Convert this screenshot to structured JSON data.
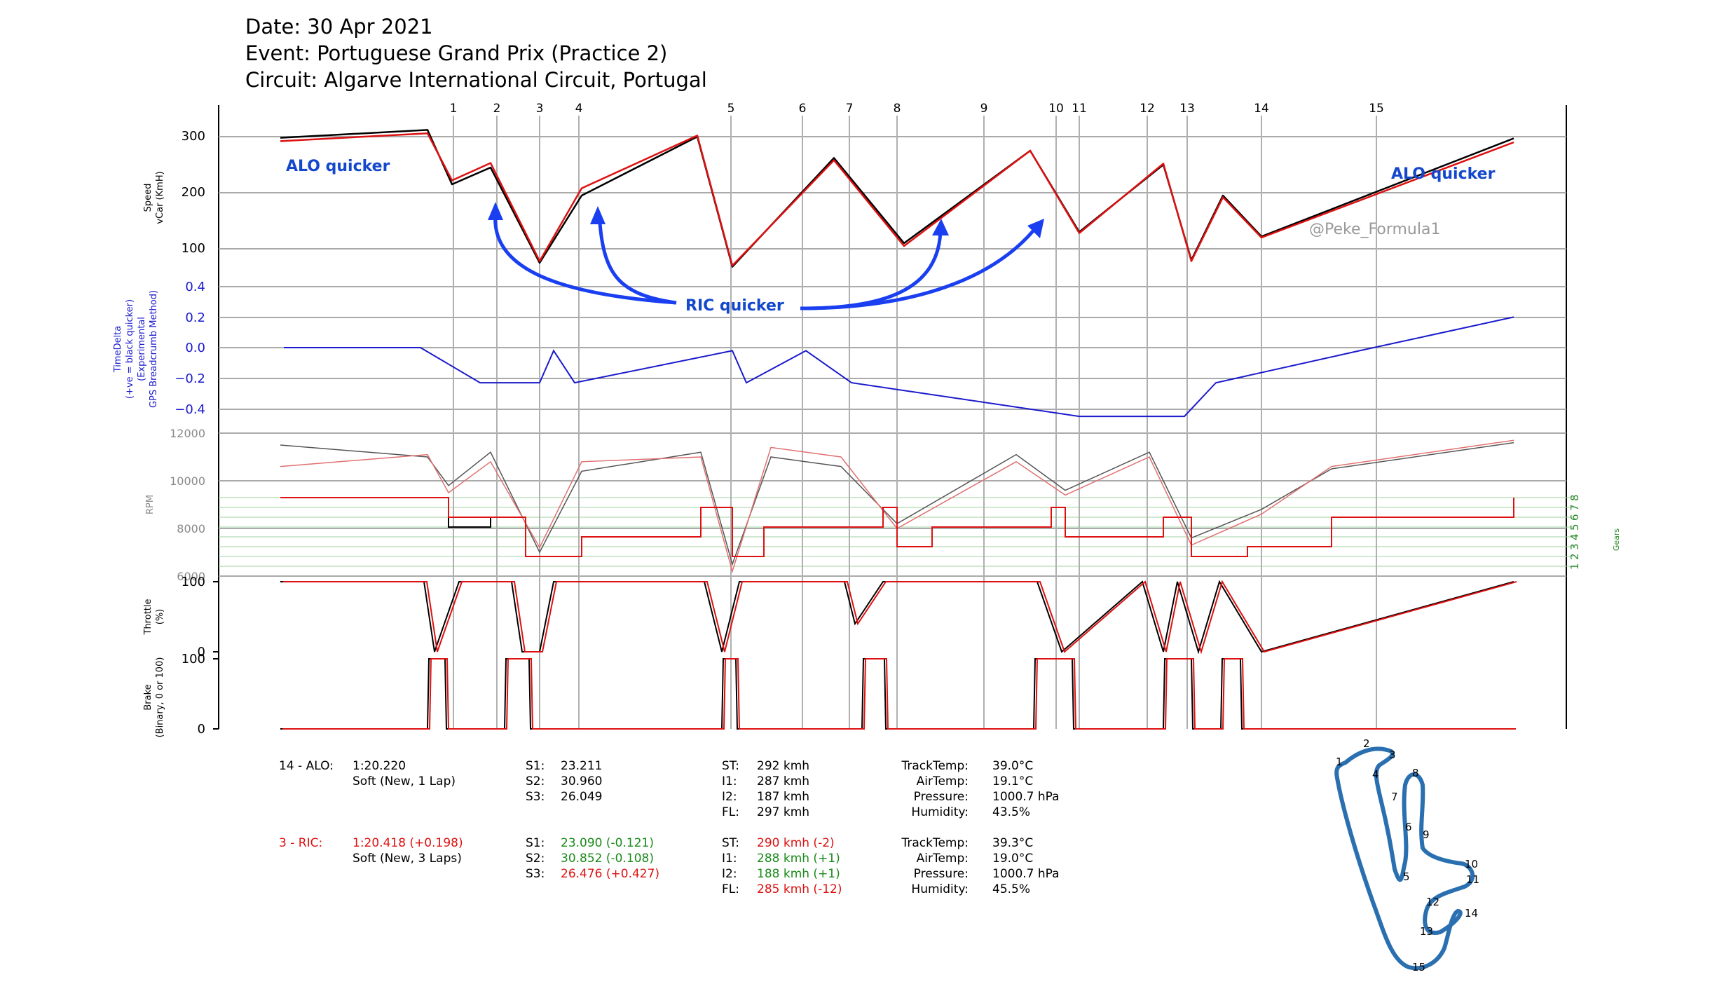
{
  "header": {
    "date": "Date: 30 Apr 2021",
    "event": "Event: Portuguese Grand Prix (Practice 2)",
    "circuit": "Circuit: Algarve International Circuit, Portugal"
  },
  "colors": {
    "driver1": "#000000",
    "driver2": "#dd1111",
    "delta": "#1a1acc",
    "annotation": "#1448cc",
    "gears": "#2a8a2a",
    "rpm_axis": "#888888",
    "track": "#2a6fb0"
  },
  "watermark": "@Peke_Formula1",
  "corners": [
    "1",
    "2",
    "3",
    "4",
    "5",
    "6",
    "7",
    "8",
    "9",
    "10",
    "11",
    "12",
    "13",
    "14",
    "15"
  ],
  "annotations": {
    "alo_left": "ALO quicker",
    "alo_right": "ALO quicker",
    "ric": "RIC quicker"
  },
  "axes": {
    "speed": {
      "label1": "Speed",
      "label2": "vCar (KmH)",
      "ticks": [
        "300",
        "200",
        "100"
      ]
    },
    "delta": {
      "label1": "TimeDelta",
      "label2": "(+ve = black quicker)",
      "label3": "(Experimental",
      "label4": "GPS Breadcrumb Method)",
      "ticks": [
        "0.4",
        "0.2",
        "0.0",
        "−0.2",
        "−0.4"
      ]
    },
    "rpm": {
      "label": "RPM",
      "ticks": [
        "12000",
        "10000",
        "8000",
        "6000"
      ]
    },
    "gears": {
      "label": "Gears",
      "ticks": [
        "1",
        "2",
        "3",
        "4",
        "5",
        "6",
        "7",
        "8"
      ]
    },
    "throttle": {
      "label1": "Throttle",
      "label2": "(%)",
      "ticks": [
        "100",
        "0"
      ]
    },
    "brake": {
      "label1": "Brake",
      "label2": "(Binary, 0 or 100)",
      "ticks": [
        "100",
        "0"
      ]
    }
  },
  "chart_data": {
    "type": "line",
    "x_corner_distance_index": [
      1,
      2,
      3,
      4,
      5,
      6,
      7,
      8,
      9,
      10,
      11,
      12,
      13,
      14,
      15
    ],
    "series": [
      {
        "name": "14 - ALO",
        "speed_kmh_key_points": [
          298,
          312,
          215,
          245,
          75,
          195,
          300,
          68,
          262,
          110,
          275,
          130,
          250,
          80,
          195,
          122,
          297
        ]
      },
      {
        "name": "3 - RIC",
        "speed_kmh_key_points": [
          292,
          306,
          222,
          253,
          78,
          208,
          302,
          70,
          258,
          105,
          275,
          128,
          252,
          78,
          192,
          120,
          290
        ]
      }
    ],
    "time_delta_s": [
      0.0,
      0.0,
      -0.23,
      -0.23,
      -0.02,
      -0.23,
      -0.02,
      -0.23,
      -0.02,
      -0.23,
      -0.45,
      -0.45,
      -0.23,
      -0.02,
      0.2
    ],
    "ylim_speed": [
      60,
      330
    ],
    "ylim_delta": [
      -0.5,
      0.5
    ],
    "ylim_rpm": [
      6000,
      12500
    ],
    "ylim_throttle": [
      0,
      100
    ],
    "ylim_brake": [
      0,
      100
    ]
  },
  "info": {
    "d1": {
      "name": "14 - ALO:",
      "lap": "1:20.220",
      "tyre": "Soft (New, 1 Lap)",
      "sectors": [
        [
          "S1:",
          "23.211"
        ],
        [
          "S2:",
          "30.960"
        ],
        [
          "S3:",
          "26.049"
        ]
      ],
      "speeds": [
        [
          "ST:",
          "292 kmh"
        ],
        [
          "I1:",
          "287 kmh"
        ],
        [
          "I2:",
          "187 kmh"
        ],
        [
          "FL:",
          "297 kmh"
        ]
      ],
      "weather": [
        [
          "TrackTemp:",
          "39.0°C"
        ],
        [
          "AirTemp:",
          "19.1°C"
        ],
        [
          "Pressure:",
          "1000.7 hPa"
        ],
        [
          "Humidity:",
          "43.5%"
        ]
      ]
    },
    "d2": {
      "name": "3 - RIC:",
      "lap": "1:20.418 (+0.198)",
      "tyre": "Soft (New, 3 Laps)",
      "sectors": [
        [
          "S1:",
          "23.090 (-0.121)"
        ],
        [
          "S2:",
          "30.852 (-0.108)"
        ],
        [
          "S3:",
          "26.476 (+0.427)"
        ]
      ],
      "speeds": [
        [
          "ST:",
          "290 kmh (-2)"
        ],
        [
          "I1:",
          "288 kmh (+1)"
        ],
        [
          "I2:",
          "188 kmh (+1)"
        ],
        [
          "FL:",
          "285 kmh (-12)"
        ]
      ],
      "weather": [
        [
          "TrackTemp:",
          "39.3°C"
        ],
        [
          "AirTemp:",
          "19.0°C"
        ],
        [
          "Pressure:",
          "1000.7 hPa"
        ],
        [
          "Humidity:",
          "45.5%"
        ]
      ]
    }
  }
}
